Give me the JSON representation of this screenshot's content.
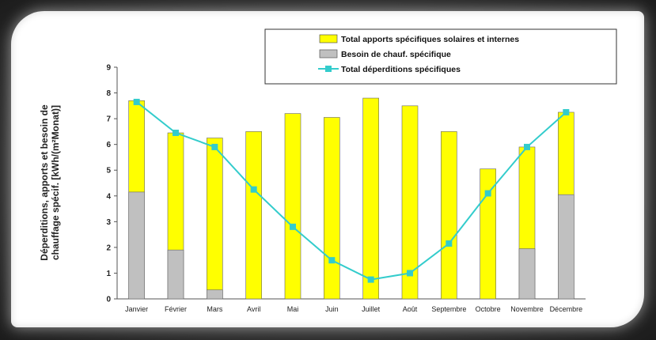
{
  "chart_data": {
    "type": "bar",
    "ylabel_line1": "Déperditions, apports et besoin de",
    "ylabel_line2": "chauffage spécif. [kWh/(m²Monat)]",
    "ylim": [
      0,
      9
    ],
    "yticks": [
      0,
      1,
      2,
      3,
      4,
      5,
      6,
      7,
      8,
      9
    ],
    "categories": [
      "Janvier",
      "Février",
      "Mars",
      "Avril",
      "Mai",
      "Juin",
      "Juillet",
      "Août",
      "Septembre",
      "Octobre",
      "Novembre",
      "Décembre"
    ],
    "series": [
      {
        "name": "Total apports spécifiques solaires et internes",
        "kind": "bar",
        "color": "#ffff00",
        "values": [
          7.7,
          6.45,
          6.25,
          6.5,
          7.2,
          7.05,
          7.8,
          7.5,
          6.5,
          5.05,
          5.9,
          7.25
        ]
      },
      {
        "name": "Besoin de chauf. spécifique",
        "kind": "bar",
        "color": "#c0c0c0",
        "values": [
          4.15,
          1.9,
          0.35,
          0,
          0,
          0,
          0,
          0,
          0,
          0,
          1.95,
          4.05
        ]
      },
      {
        "name": "Total déperditions spécifiques",
        "kind": "line",
        "color": "#33cccc",
        "values": [
          7.65,
          6.45,
          5.9,
          4.25,
          2.8,
          1.5,
          0.75,
          1.0,
          2.15,
          4.1,
          5.9,
          7.25
        ]
      }
    ],
    "legend_position": "top-right",
    "grid": false
  }
}
